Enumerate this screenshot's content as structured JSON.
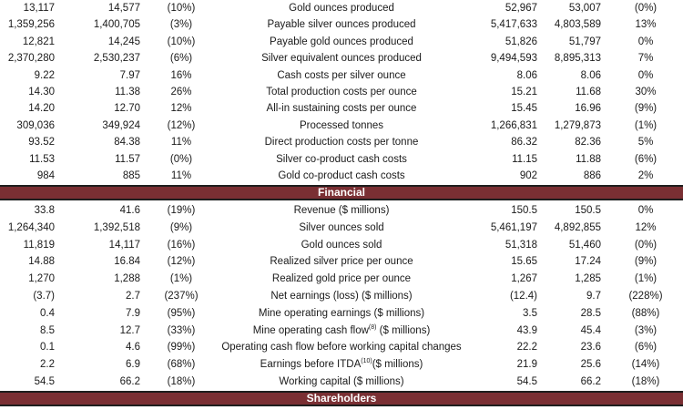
{
  "production_rows": [
    {
      "q_cur": "13,117",
      "q_prev": "14,577",
      "q_chg": "(10%)",
      "label": "Gold ounces produced",
      "y_cur": "52,967",
      "y_prev": "53,007",
      "y_chg": "(0%)"
    },
    {
      "q_cur": "1,359,256",
      "q_prev": "1,400,705",
      "q_chg": "(3%)",
      "label": "Payable silver ounces produced",
      "y_cur": "5,417,633",
      "y_prev": "4,803,589",
      "y_chg": "13%"
    },
    {
      "q_cur": "12,821",
      "q_prev": "14,245",
      "q_chg": "(10%)",
      "label": "Payable gold ounces produced",
      "y_cur": "51,826",
      "y_prev": "51,797",
      "y_chg": "0%"
    },
    {
      "q_cur": "2,370,280",
      "q_prev": "2,530,237",
      "q_chg": "(6%)",
      "label": "Silver equivalent ounces produced",
      "y_cur": "9,494,593",
      "y_prev": "8,895,313",
      "y_chg": "7%"
    },
    {
      "q_cur": "9.22",
      "q_prev": "7.97",
      "q_chg": "16%",
      "label": "Cash costs per silver ounce",
      "y_cur": "8.06",
      "y_prev": "8.06",
      "y_chg": "0%"
    },
    {
      "q_cur": "14.30",
      "q_prev": "11.38",
      "q_chg": "26%",
      "label": "Total production costs per ounce",
      "y_cur": "15.21",
      "y_prev": "11.68",
      "y_chg": "30%"
    },
    {
      "q_cur": "14.20",
      "q_prev": "12.70",
      "q_chg": "12%",
      "label": "All-in sustaining costs per ounce",
      "y_cur": "15.45",
      "y_prev": "16.96",
      "y_chg": "(9%)"
    },
    {
      "q_cur": "309,036",
      "q_prev": "349,924",
      "q_chg": "(12%)",
      "label": "Processed tonnes",
      "y_cur": "1,266,831",
      "y_prev": "1,279,873",
      "y_chg": "(1%)"
    },
    {
      "q_cur": "93.52",
      "q_prev": "84.38",
      "q_chg": "11%",
      "label": "Direct production costs per tonne",
      "y_cur": "86.32",
      "y_prev": "82.36",
      "y_chg": "5%"
    },
    {
      "q_cur": "11.53",
      "q_prev": "11.57",
      "q_chg": "(0%)",
      "label": "Silver co-product cash costs",
      "y_cur": "11.15",
      "y_prev": "11.88",
      "y_chg": "(6%)"
    },
    {
      "q_cur": "984",
      "q_prev": "885",
      "q_chg": "11%",
      "label": "Gold co-product cash costs",
      "y_cur": "902",
      "y_prev": "886",
      "y_chg": "2%"
    }
  ],
  "section_financial": "Financial",
  "financial_rows": [
    {
      "q_cur": "33.8",
      "q_prev": "41.6",
      "q_chg": "(19%)",
      "label": "Revenue ($ millions)",
      "y_cur": "150.5",
      "y_prev": "150.5",
      "y_chg": "0%"
    },
    {
      "q_cur": "1,264,340",
      "q_prev": "1,392,518",
      "q_chg": "(9%)",
      "label": "Silver ounces sold",
      "y_cur": "5,461,197",
      "y_prev": "4,892,855",
      "y_chg": "12%"
    },
    {
      "q_cur": "11,819",
      "q_prev": "14,117",
      "q_chg": "(16%)",
      "label": "Gold ounces sold",
      "y_cur": "51,318",
      "y_prev": "51,460",
      "y_chg": "(0%)"
    },
    {
      "q_cur": "14.88",
      "q_prev": "16.84",
      "q_chg": "(12%)",
      "label": "Realized silver price per ounce",
      "y_cur": "15.65",
      "y_prev": "17.24",
      "y_chg": "(9%)"
    },
    {
      "q_cur": "1,270",
      "q_prev": "1,288",
      "q_chg": "(1%)",
      "label": "Realized gold price per ounce",
      "y_cur": "1,267",
      "y_prev": "1,285",
      "y_chg": "(1%)"
    },
    {
      "q_cur": "(3.7)",
      "q_prev": "2.7",
      "q_chg": "(237%)",
      "label": "Net earnings (loss) ($ millions)",
      "y_cur": "(12.4)",
      "y_prev": "9.7",
      "y_chg": "(228%)"
    },
    {
      "q_cur": "0.4",
      "q_prev": "7.9",
      "q_chg": "(95%)",
      "label": "Mine operating earnings ($ millions)",
      "y_cur": "3.5",
      "y_prev": "28.5",
      "y_chg": "(88%)"
    },
    {
      "q_cur": "8.5",
      "q_prev": "12.7",
      "q_chg": "(33%)",
      "label": "Mine operating cash flow",
      "label_sup": "(8)",
      "label_after": " ($ millions)",
      "y_cur": "43.9",
      "y_prev": "45.4",
      "y_chg": "(3%)"
    },
    {
      "q_cur": "0.1",
      "q_prev": "4.6",
      "q_chg": "(99%)",
      "label": "Operating cash flow before working capital changes",
      "y_cur": "22.2",
      "y_prev": "23.6",
      "y_chg": "(6%)"
    },
    {
      "q_cur": "2.2",
      "q_prev": "6.9",
      "q_chg": "(68%)",
      "label": "Earnings before ITDA",
      "label_sup": "(10)",
      "label_after": "($ millions)",
      "y_cur": "21.9",
      "y_prev": "25.6",
      "y_chg": "(14%)"
    },
    {
      "q_cur": "54.5",
      "q_prev": "66.2",
      "q_chg": "(18%)",
      "label": "Working capital ($ millions)",
      "y_cur": "54.5",
      "y_prev": "66.2",
      "y_chg": "(18%)"
    }
  ],
  "section_shareholders": "Shareholders",
  "colors": {
    "section_bar": "#7a2f33",
    "section_text": "#ffffff",
    "body_text": "#1a1a1a"
  }
}
